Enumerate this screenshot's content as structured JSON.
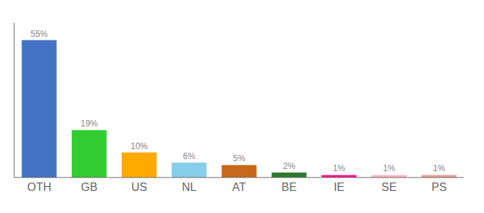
{
  "chart_data": {
    "type": "bar",
    "categories": [
      "OTH",
      "GB",
      "US",
      "NL",
      "AT",
      "BE",
      "IE",
      "SE",
      "PS"
    ],
    "values": [
      55,
      19,
      10,
      6,
      5,
      2,
      1,
      1,
      1
    ],
    "value_labels": [
      "55%",
      "19%",
      "10%",
      "6%",
      "5%",
      "2%",
      "1%",
      "1%",
      "1%"
    ],
    "data_labels": true,
    "colors": [
      "#4472c4",
      "#33cc33",
      "#ffaa00",
      "#87ceeb",
      "#c8681a",
      "#2d7a2d",
      "#ff1493",
      "#ffb6c1",
      "#e8a090"
    ],
    "ylim": [
      0,
      62
    ],
    "tick_labels": "x"
  }
}
